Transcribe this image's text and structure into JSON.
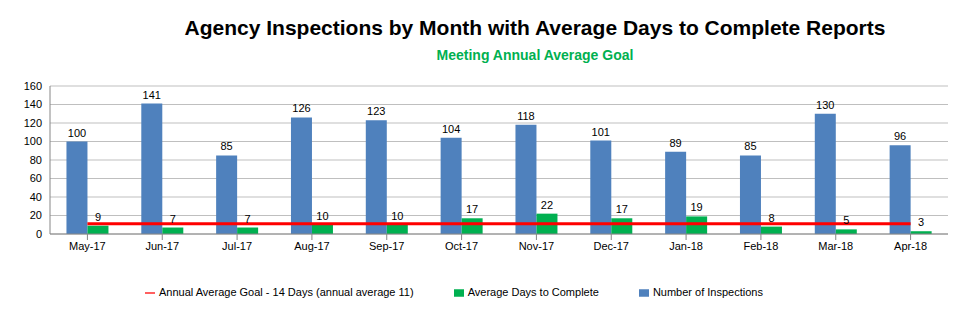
{
  "chart_data": {
    "type": "bar",
    "title": "Agency Inspections by Month with Average Days to Complete Reports",
    "subtitle": "Meeting Annual Average Goal",
    "categories": [
      "May-17",
      "Jun-17",
      "Jul-17",
      "Aug-17",
      "Sep-17",
      "Oct-17",
      "Nov-17",
      "Dec-17",
      "Jan-18",
      "Feb-18",
      "Mar-18",
      "Apr-18"
    ],
    "series": [
      {
        "name": "Number of Inspections",
        "type": "bar",
        "color": "#4f81bd",
        "data_labels": true,
        "values": [
          100,
          141,
          85,
          126,
          123,
          104,
          118,
          101,
          89,
          85,
          130,
          96
        ]
      },
      {
        "name": "Average Days to Complete",
        "type": "bar",
        "color": "#00b050",
        "data_labels": true,
        "values": [
          9,
          7,
          7,
          10,
          10,
          17,
          22,
          17,
          19,
          8,
          5,
          3
        ]
      },
      {
        "name": "Annual Average Goal - 14 Days (annual average 11)",
        "type": "line",
        "color": "#ff0000",
        "marker": "none",
        "data_labels": false,
        "values": [
          11,
          11,
          11,
          11,
          11,
          11,
          11,
          11,
          11,
          11,
          11,
          11
        ]
      }
    ],
    "ylim": [
      0,
      160
    ],
    "yticks": [
      0,
      20,
      40,
      60,
      80,
      100,
      120,
      140,
      160
    ],
    "grid": true,
    "legend": "bottom"
  }
}
